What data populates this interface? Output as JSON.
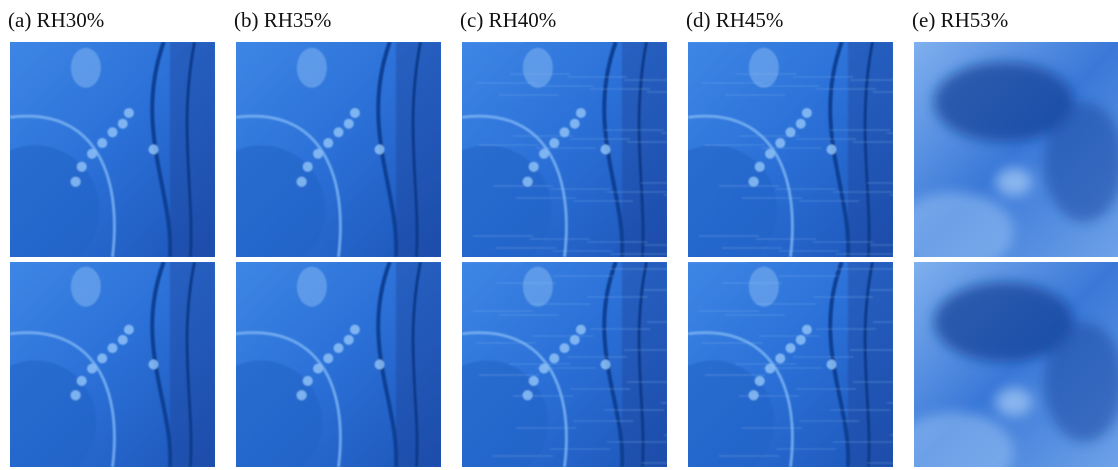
{
  "panels": [
    {
      "label": "(a) RH30%"
    },
    {
      "label": "(b) RH35%"
    },
    {
      "label": "(c) RH40%"
    },
    {
      "label": "(d) RH45%"
    },
    {
      "label": "(e) RH53%"
    }
  ]
}
